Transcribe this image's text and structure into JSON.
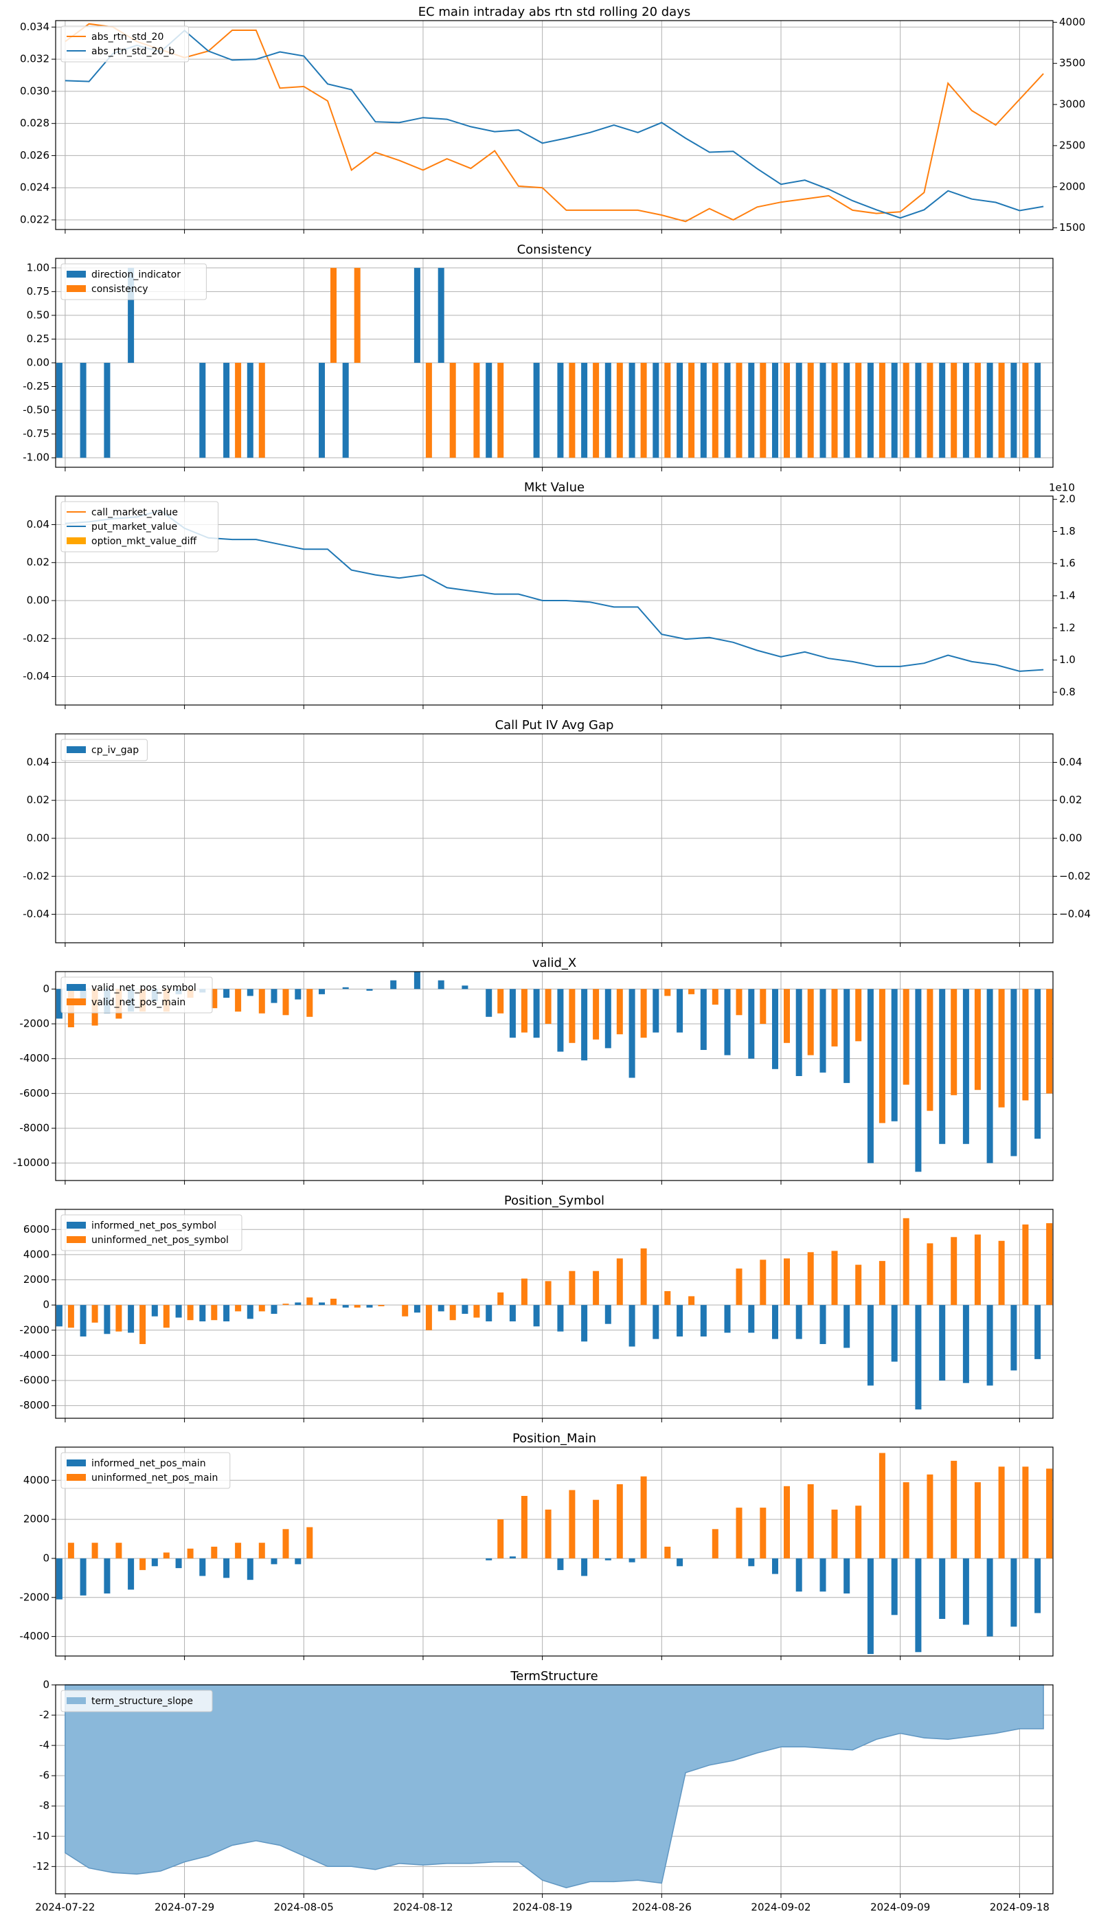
{
  "colors": {
    "blue": "#1f77b4",
    "orange": "#ff7f0e",
    "gold": "#ffa500",
    "fill": "#8ab8da",
    "grid": "#b0b0b0"
  },
  "chart_data": [
    {
      "type": "line",
      "title": "EC main intraday abs rtn std rolling 20 days",
      "ylim": [
        0.0214,
        0.0344
      ],
      "y2lim": [
        1480,
        4020
      ],
      "yticks": [
        "0.022",
        "0.024",
        "0.026",
        "0.028",
        "0.030",
        "0.032",
        "0.034"
      ],
      "y2ticks": [
        "1500",
        "2000",
        "2500",
        "3000",
        "3500",
        "4000"
      ],
      "legend_loc": "upper-left",
      "series": [
        {
          "name": "abs_rtn_std_20",
          "color": "orange",
          "axis": "y",
          "values": [
            0.0331,
            0.0342,
            0.034,
            0.0331,
            0.0326,
            0.0321,
            0.0325,
            0.0338,
            0.0338,
            0.0302,
            0.0303,
            0.0294,
            0.0251,
            0.0262,
            0.0257,
            0.0251,
            0.0258,
            0.0252,
            0.0263,
            0.0241,
            0.024,
            0.0226,
            0.0226,
            0.0226,
            0.0226,
            0.0223,
            0.0219,
            0.0227,
            0.022,
            0.0228,
            0.0231,
            0.0233,
            0.0235,
            0.0226,
            0.0224,
            0.0225,
            0.0237,
            0.0305,
            0.0288,
            0.0279,
            0.0295,
            0.0311
          ]
        },
        {
          "name": "abs_rtn_std_20_b",
          "color": "blue",
          "axis": "y2",
          "values": [
            3290,
            3280,
            3620,
            3720,
            3640,
            3900,
            3650,
            3540,
            3550,
            3640,
            3590,
            3250,
            3180,
            2790,
            2780,
            2840,
            2820,
            2730,
            2670,
            2690,
            2530,
            2590,
            2660,
            2750,
            2660,
            2780,
            2590,
            2420,
            2430,
            2220,
            2030,
            2080,
            1970,
            1830,
            1720,
            1620,
            1720,
            1950,
            1850,
            1810,
            1710,
            1760
          ]
        }
      ]
    },
    {
      "type": "bar",
      "title": "Consistency",
      "ylim": [
        -1.1,
        1.1
      ],
      "yticks": [
        "-1.00",
        "-0.75",
        "-0.50",
        "-0.25",
        "0.00",
        "0.25",
        "0.50",
        "0.75",
        "1.00"
      ],
      "legend_loc": "upper-left",
      "series": [
        {
          "name": "direction_indicator",
          "color": "blue",
          "values": [
            -1,
            -1,
            -1,
            1,
            0,
            0,
            -1,
            -1,
            -1,
            0,
            0,
            -1,
            -1,
            0,
            0,
            1,
            1,
            0,
            -1,
            0,
            -1,
            -1,
            -1,
            -1,
            -1,
            -1,
            -1,
            -1,
            -1,
            -1,
            -1,
            -1,
            -1,
            -1,
            -1,
            -1,
            -1,
            -1,
            -1,
            -1,
            -1,
            -1
          ]
        },
        {
          "name": "consistency",
          "color": "orange",
          "values": [
            0,
            0,
            0,
            0,
            0,
            0,
            0,
            -1,
            -1,
            0,
            0,
            1,
            1,
            0,
            0,
            -1,
            -1,
            -1,
            -1,
            0,
            0,
            -1,
            -1,
            -1,
            -1,
            -1,
            -1,
            -1,
            -1,
            -1,
            -1,
            -1,
            -1,
            -1,
            -1,
            -1,
            -1,
            -1,
            -1,
            -1,
            -1,
            0
          ]
        }
      ]
    },
    {
      "type": "line",
      "title": "Mkt Value",
      "ylim": [
        -0.055,
        0.055
      ],
      "y2lim": [
        0.72,
        2.02
      ],
      "yticks": [
        "-0.04",
        "-0.02",
        "0.00",
        "0.02",
        "0.04"
      ],
      "y2ticks": [
        "0.8",
        "1.0",
        "1.2",
        "1.4",
        "1.6",
        "1.8",
        "2.0"
      ],
      "y2_offset_label": "1e10",
      "legend_loc": "upper-left",
      "series": [
        {
          "name": "call_market_value",
          "color": "orange",
          "axis": "y2",
          "values": []
        },
        {
          "name": "put_market_value",
          "color": "blue",
          "axis": "y2",
          "values": [
            1.85,
            1.86,
            1.88,
            1.89,
            1.93,
            1.82,
            1.76,
            1.75,
            1.75,
            1.72,
            1.69,
            1.69,
            1.56,
            1.53,
            1.51,
            1.53,
            1.45,
            1.43,
            1.41,
            1.41,
            1.37,
            1.37,
            1.36,
            1.33,
            1.33,
            1.16,
            1.13,
            1.14,
            1.11,
            1.06,
            1.02,
            1.05,
            1.01,
            0.99,
            0.96,
            0.96,
            0.98,
            1.03,
            0.99,
            0.97,
            0.93,
            0.94
          ]
        },
        {
          "name": "option_mkt_value_diff",
          "color": "gold",
          "axis": "y",
          "kind": "bar",
          "values": []
        }
      ]
    },
    {
      "type": "bar",
      "title": "Call Put IV Avg Gap",
      "ylim": [
        -0.055,
        0.055
      ],
      "y2lim": [
        -0.055,
        0.055
      ],
      "yticks": [
        "-0.04",
        "-0.02",
        "0.00",
        "0.02",
        "0.04"
      ],
      "y2ticks": [
        "−0.04",
        "−0.02",
        "0.00",
        "0.02",
        "0.04"
      ],
      "legend_loc": "upper-left",
      "series": [
        {
          "name": "cp_iv_gap",
          "color": "blue",
          "values": []
        }
      ]
    },
    {
      "type": "bar",
      "title": "valid_X",
      "ylim": [
        -11000,
        1000
      ],
      "yticks": [
        "-10000",
        "-8000",
        "-6000",
        "-4000",
        "-2000",
        "0"
      ],
      "legend_loc": "upper-left",
      "series": [
        {
          "name": "valid_net_pos_symbol",
          "color": "blue",
          "values": [
            -1700,
            -900,
            -1400,
            -1300,
            -700,
            -300,
            -200,
            -500,
            -400,
            -800,
            -600,
            -300,
            100,
            -100,
            500,
            1000,
            500,
            200,
            -1600,
            -2800,
            -2800,
            -3600,
            -4100,
            -3400,
            -5100,
            -2500,
            -2500,
            -3500,
            -3800,
            -4000,
            -4600,
            -5000,
            -4800,
            -5400,
            -10000,
            -7600,
            -10500,
            -8900,
            -8900,
            -10000,
            -9600,
            -8600
          ]
        },
        {
          "name": "valid_net_pos_main",
          "color": "orange",
          "values": [
            -2200,
            -2100,
            -1700,
            -1300,
            -1300,
            -500,
            -1100,
            -1300,
            -1400,
            -1500,
            -1600,
            0,
            0,
            0,
            0,
            0,
            0,
            0,
            -1400,
            -2500,
            -2000,
            -3100,
            -2900,
            -2600,
            -2800,
            -400,
            -300,
            -900,
            -1500,
            -2000,
            -3100,
            -3800,
            -3300,
            -3000,
            -7700,
            -5500,
            -7000,
            -6100,
            -5800,
            -6800,
            -6400,
            -6000
          ]
        }
      ]
    },
    {
      "type": "bar",
      "title": "Position_Symbol",
      "ylim": [
        -9000,
        7600
      ],
      "yticks": [
        "-8000",
        "-6000",
        "-4000",
        "-2000",
        "0",
        "2000",
        "4000",
        "6000"
      ],
      "legend_loc": "upper-left",
      "series": [
        {
          "name": "informed_net_pos_symbol",
          "color": "blue",
          "values": [
            -1700,
            -2500,
            -2300,
            -2200,
            -900,
            -1000,
            -1300,
            -1300,
            -1100,
            -700,
            200,
            200,
            -200,
            -200,
            0,
            -600,
            -500,
            -700,
            -1300,
            -1300,
            -1700,
            -2100,
            -2900,
            -1500,
            -3300,
            -2700,
            -2500,
            -2500,
            -2200,
            -2200,
            -2700,
            -2700,
            -3100,
            -3400,
            -6400,
            -4500,
            -8300,
            -6000,
            -6200,
            -6400,
            -5200,
            -4300
          ]
        },
        {
          "name": "uninformed_net_pos_symbol",
          "color": "orange",
          "values": [
            -1800,
            -1400,
            -2100,
            -3100,
            -1800,
            -1200,
            -1200,
            -500,
            -500,
            100,
            600,
            500,
            -200,
            -100,
            -900,
            -2000,
            -1200,
            -1000,
            1000,
            2100,
            1900,
            2700,
            2700,
            3700,
            4500,
            1100,
            700,
            0,
            2900,
            3600,
            3700,
            4200,
            4300,
            3200,
            3500,
            6900,
            4900,
            5400,
            5600,
            5100,
            6400,
            6500
          ]
        }
      ]
    },
    {
      "type": "bar",
      "title": "Position_Main",
      "ylim": [
        -5000,
        5700
      ],
      "yticks": [
        "-4000",
        "-2000",
        "0",
        "2000",
        "4000"
      ],
      "legend_loc": "upper-left",
      "series": [
        {
          "name": "informed_net_pos_main",
          "color": "blue",
          "values": [
            -2100,
            -1900,
            -1800,
            -1600,
            -400,
            -500,
            -900,
            -1000,
            -1100,
            -300,
            -300,
            0,
            0,
            0,
            0,
            0,
            0,
            0,
            -100,
            100,
            0,
            -600,
            -900,
            -100,
            -200,
            0,
            -400,
            0,
            0,
            -400,
            -800,
            -1700,
            -1700,
            -1800,
            -4900,
            -2900,
            -4800,
            -3100,
            -3400,
            -4000,
            -3500,
            -2800
          ]
        },
        {
          "name": "uninformed_net_pos_main",
          "color": "orange",
          "values": [
            800,
            800,
            800,
            -600,
            300,
            500,
            600,
            800,
            800,
            1500,
            1600,
            0,
            0,
            0,
            0,
            0,
            0,
            0,
            2000,
            3200,
            2500,
            3500,
            3000,
            3800,
            4200,
            600,
            0,
            1500,
            2600,
            2600,
            3700,
            3800,
            2500,
            2700,
            5400,
            3900,
            4300,
            5000,
            3900,
            4700,
            4700,
            4600
          ]
        }
      ]
    },
    {
      "type": "area",
      "title": "TermStructure",
      "ylim": [
        -13.8,
        0
      ],
      "yticks": [
        "-12",
        "-10",
        "-8",
        "-6",
        "-4",
        "-2",
        "0"
      ],
      "legend_loc": "upper-left",
      "x_dates": [
        "2024-07-22",
        "2024-07-23",
        "2024-07-24",
        "2024-07-25",
        "2024-07-26",
        "2024-07-29",
        "2024-07-30",
        "2024-07-31",
        "2024-08-01",
        "2024-08-02",
        "2024-08-05",
        "2024-08-06",
        "2024-08-07",
        "2024-08-08",
        "2024-08-09",
        "2024-08-12",
        "2024-08-13",
        "2024-08-14",
        "2024-08-15",
        "2024-08-16",
        "2024-08-19",
        "2024-08-20",
        "2024-08-21",
        "2024-08-22",
        "2024-08-23",
        "2024-08-26",
        "2024-08-27",
        "2024-08-28",
        "2024-08-29",
        "2024-08-30",
        "2024-09-02",
        "2024-09-03",
        "2024-09-04",
        "2024-09-05",
        "2024-09-06",
        "2024-09-09",
        "2024-09-10",
        "2024-09-11",
        "2024-09-12",
        "2024-09-13",
        "2024-09-18",
        "2024-09-19"
      ],
      "xticks": [
        "2024-07-22",
        "2024-07-29",
        "2024-08-05",
        "2024-08-12",
        "2024-08-19",
        "2024-08-26",
        "2024-09-02",
        "2024-09-09",
        "2024-09-18"
      ],
      "series": [
        {
          "name": "term_structure_slope",
          "color": "fill",
          "values": [
            -11.1,
            -12.1,
            -12.4,
            -12.5,
            -12.3,
            -11.7,
            -11.3,
            -10.6,
            -10.3,
            -10.6,
            -11.3,
            -12.0,
            -12.0,
            -12.2,
            -11.8,
            -11.9,
            -11.8,
            -11.8,
            -11.7,
            -11.7,
            -12.9,
            -13.4,
            -13.0,
            -13.0,
            -12.9,
            -13.1,
            -5.8,
            -5.3,
            -5.0,
            -4.5,
            -4.1,
            -4.1,
            -4.2,
            -4.3,
            -3.6,
            -3.2,
            -3.5,
            -3.6,
            -3.4,
            -3.2,
            -2.9,
            -2.9
          ]
        }
      ]
    }
  ]
}
